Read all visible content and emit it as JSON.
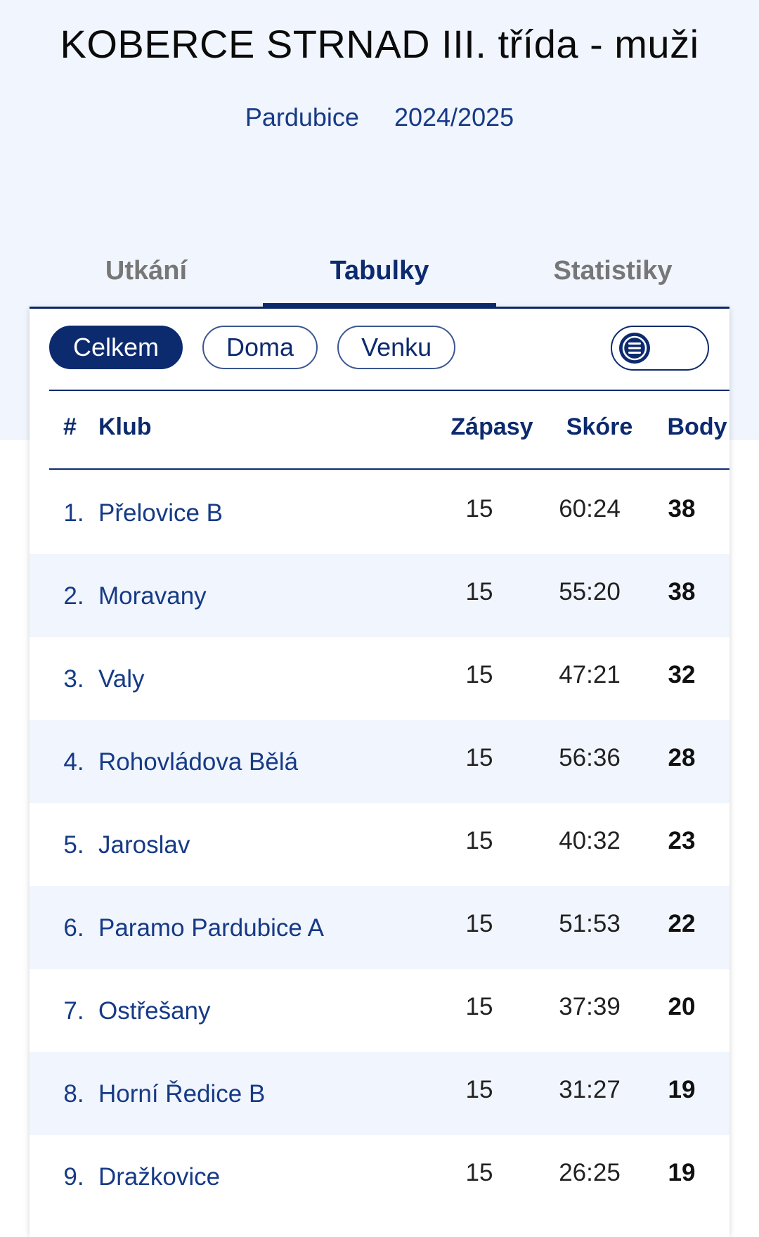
{
  "header": {
    "title": "KOBERCE STRNAD III. třída - muži",
    "region": "Pardubice",
    "season": "2024/2025"
  },
  "tabs": [
    {
      "label": "Utkání",
      "active": false
    },
    {
      "label": "Tabulky",
      "active": true
    },
    {
      "label": "Statistiky",
      "active": false
    }
  ],
  "filters": {
    "all": "Celkem",
    "home": "Doma",
    "away": "Venku",
    "selected": "Celkem"
  },
  "view_toggle": {
    "icon": "list-icon"
  },
  "table": {
    "columns": {
      "rank": "#",
      "club": "Klub",
      "matches": "Zápasy",
      "score": "Skóre",
      "points": "Body"
    },
    "rows": [
      {
        "rank": "1.",
        "club": "Přelovice B",
        "matches": "15",
        "score": "60:24",
        "points": "38"
      },
      {
        "rank": "2.",
        "club": "Moravany",
        "matches": "15",
        "score": "55:20",
        "points": "38"
      },
      {
        "rank": "3.",
        "club": "Valy",
        "matches": "15",
        "score": "47:21",
        "points": "32"
      },
      {
        "rank": "4.",
        "club": "Rohovládova Bělá",
        "matches": "15",
        "score": "56:36",
        "points": "28"
      },
      {
        "rank": "5.",
        "club": "Jaroslav",
        "matches": "15",
        "score": "40:32",
        "points": "23"
      },
      {
        "rank": "6.",
        "club": "Paramo Pardubice A",
        "matches": "15",
        "score": "51:53",
        "points": "22"
      },
      {
        "rank": "7.",
        "club": "Ostřešany",
        "matches": "15",
        "score": "37:39",
        "points": "20"
      },
      {
        "rank": "8.",
        "club": "Horní Ředice B",
        "matches": "15",
        "score": "31:27",
        "points": "19"
      },
      {
        "rank": "9.",
        "club": "Dražkovice",
        "matches": "15",
        "score": "26:25",
        "points": "19"
      }
    ]
  }
}
